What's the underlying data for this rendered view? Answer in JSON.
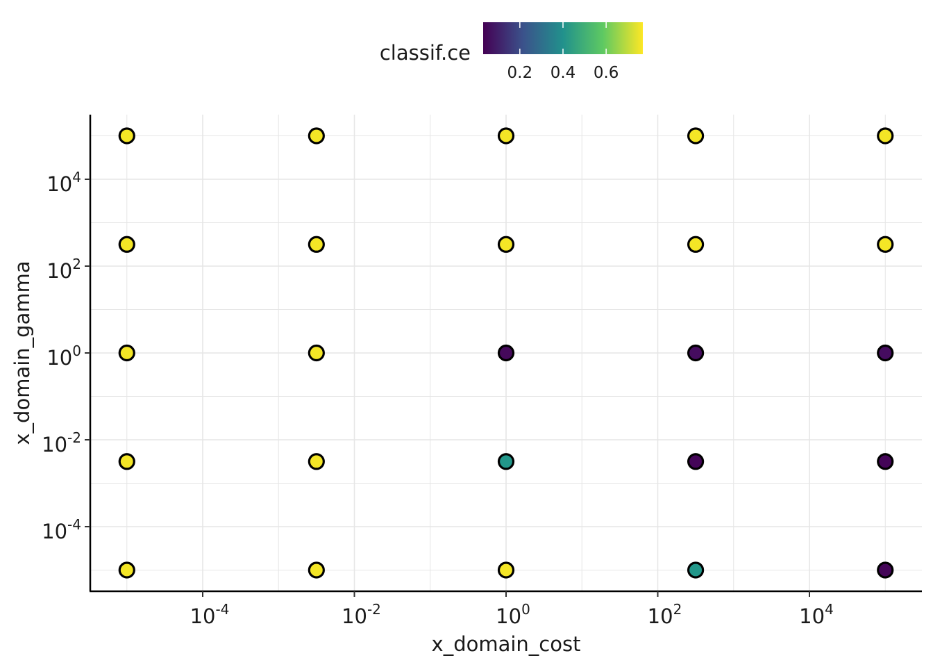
{
  "chart_data": {
    "type": "scatter",
    "title": "",
    "xlabel": "x_domain_cost",
    "ylabel": "x_domain_gamma",
    "x_scale": "log10",
    "y_scale": "log10",
    "xlim": [
      5e-07,
      200000
    ],
    "ylim": [
      3e-06,
      250000
    ],
    "grid": true,
    "x_ticks": [
      {
        "value": 0.0001,
        "base": "10",
        "exp": "-4"
      },
      {
        "value": 0.01,
        "base": "10",
        "exp": "-2"
      },
      {
        "value": 1,
        "base": "10",
        "exp": "0"
      },
      {
        "value": 100,
        "base": "10",
        "exp": "2"
      },
      {
        "value": 10000,
        "base": "10",
        "exp": "4"
      }
    ],
    "y_ticks": [
      {
        "value": 0.0001,
        "base": "10",
        "exp": "-4"
      },
      {
        "value": 0.01,
        "base": "10",
        "exp": "-2"
      },
      {
        "value": 1,
        "base": "10",
        "exp": "0"
      },
      {
        "value": 100,
        "base": "10",
        "exp": "2"
      },
      {
        "value": 10000,
        "base": "10",
        "exp": "4"
      }
    ],
    "legend": {
      "title": "classif.ce",
      "placement": "top",
      "colormap": "viridis",
      "range": [
        0.03,
        0.77
      ],
      "ticks": [
        {
          "value": 0.2,
          "label": "0.2"
        },
        {
          "value": 0.4,
          "label": "0.4"
        },
        {
          "value": 0.6,
          "label": "0.6"
        }
      ]
    },
    "points": [
      {
        "x": 1e-05,
        "y": 100000,
        "classif_ce": 0.76
      },
      {
        "x": 0.00316,
        "y": 100000,
        "classif_ce": 0.76
      },
      {
        "x": 1,
        "y": 100000,
        "classif_ce": 0.76
      },
      {
        "x": 316,
        "y": 100000,
        "classif_ce": 0.76
      },
      {
        "x": 100000,
        "y": 100000,
        "classif_ce": 0.76
      },
      {
        "x": 1e-05,
        "y": 316,
        "classif_ce": 0.76
      },
      {
        "x": 0.00316,
        "y": 316,
        "classif_ce": 0.76
      },
      {
        "x": 1,
        "y": 316,
        "classif_ce": 0.76
      },
      {
        "x": 316,
        "y": 316,
        "classif_ce": 0.76
      },
      {
        "x": 100000,
        "y": 316,
        "classif_ce": 0.76
      },
      {
        "x": 1e-05,
        "y": 1,
        "classif_ce": 0.76
      },
      {
        "x": 0.00316,
        "y": 1,
        "classif_ce": 0.76
      },
      {
        "x": 1,
        "y": 1,
        "classif_ce": 0.05
      },
      {
        "x": 316,
        "y": 1,
        "classif_ce": 0.06
      },
      {
        "x": 100000,
        "y": 1,
        "classif_ce": 0.06
      },
      {
        "x": 1e-05,
        "y": 0.00316,
        "classif_ce": 0.76
      },
      {
        "x": 0.00316,
        "y": 0.00316,
        "classif_ce": 0.76
      },
      {
        "x": 1,
        "y": 0.00316,
        "classif_ce": 0.42
      },
      {
        "x": 316,
        "y": 0.00316,
        "classif_ce": 0.04
      },
      {
        "x": 100000,
        "y": 0.00316,
        "classif_ce": 0.04
      },
      {
        "x": 1e-05,
        "y": 1e-05,
        "classif_ce": 0.76
      },
      {
        "x": 0.00316,
        "y": 1e-05,
        "classif_ce": 0.76
      },
      {
        "x": 1,
        "y": 1e-05,
        "classif_ce": 0.76
      },
      {
        "x": 316,
        "y": 1e-05,
        "classif_ce": 0.42
      },
      {
        "x": 100000,
        "y": 1e-05,
        "classif_ce": 0.04
      }
    ]
  }
}
